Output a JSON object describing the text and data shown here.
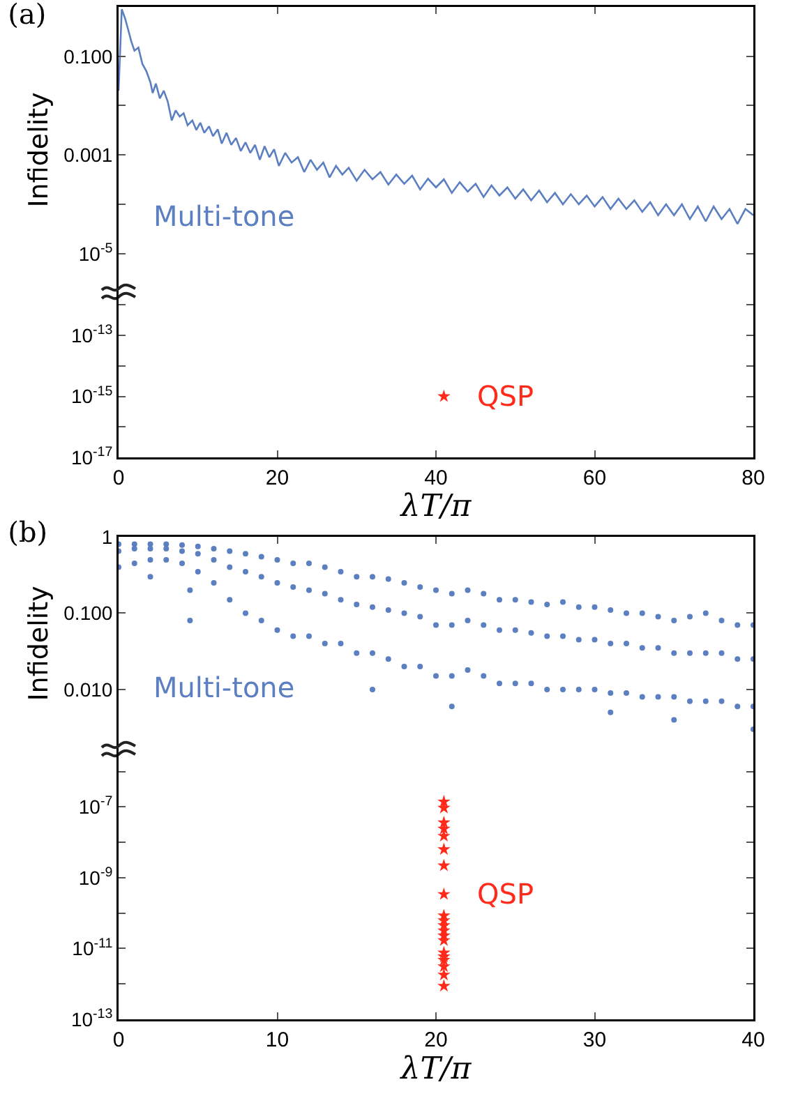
{
  "chart_data": [
    {
      "type": "line",
      "title": "(a)",
      "ylabel": "Infidelity",
      "log": true,
      "tick_labels": "y",
      "xlim": [
        0,
        80
      ],
      "xticks": [
        0,
        20,
        40,
        60,
        80
      ],
      "ylim": [
        1.6e-06,
        1
      ],
      "yticks": [
        {
          "value": 1e-05,
          "label": "10$^{-5}$"
        },
        {
          "value": 0.0001,
          "label": null
        },
        0.001,
        {
          "value": 0.01,
          "label": null
        },
        {
          "value": 0.1,
          "label": "0.100"
        }
      ],
      "series": [
        {
          "name": "Multi-tone",
          "color": "#5b7fc0",
          "x": [
            0,
            0.4,
            0.8,
            1.2,
            1.6,
            2,
            2.5,
            3,
            3.5,
            4,
            4.3,
            4.7,
            5.2,
            5.7,
            6.2,
            6.7,
            7.2,
            7.7,
            8.2,
            8.7,
            9.3,
            9.8,
            10.3,
            10.8,
            11.4,
            11.9,
            12.5,
            13,
            13.6,
            14.2,
            14.8,
            15.4,
            16,
            16.6,
            17.2,
            17.8,
            18.4,
            19,
            19.6,
            20.2,
            21,
            21.8,
            22.6,
            23.4,
            24.2,
            25,
            25.8,
            26.6,
            27.4,
            28.2,
            29,
            30,
            31,
            32,
            33,
            34,
            35,
            36,
            37,
            38,
            39,
            40,
            41,
            42,
            43,
            44,
            45,
            46,
            47,
            48,
            49,
            50,
            51,
            52,
            53,
            54,
            55,
            56,
            57,
            58,
            59,
            60,
            61,
            62,
            63,
            64,
            65,
            66,
            67,
            68,
            69,
            70,
            71,
            72,
            73,
            74,
            75,
            76,
            77,
            78,
            79,
            80
          ],
          "values": [
            0.02,
            0.9,
            0.6,
            0.35,
            0.2,
            0.13,
            0.15,
            0.07,
            0.05,
            0.03,
            0.018,
            0.028,
            0.014,
            0.02,
            0.012,
            0.005,
            0.008,
            0.006,
            0.007,
            0.004,
            0.005,
            0.0032,
            0.0045,
            0.0028,
            0.0038,
            0.0024,
            0.0033,
            0.0017,
            0.0028,
            0.0016,
            0.0022,
            0.0012,
            0.0018,
            0.0011,
            0.0016,
            0.0008,
            0.0015,
            0.0009,
            0.0013,
            0.0006,
            0.0011,
            0.0007,
            0.0009,
            0.00045,
            0.0008,
            0.0005,
            0.0007,
            0.00035,
            0.0006,
            0.0004,
            0.00055,
            0.0003,
            0.0005,
            0.00032,
            0.00045,
            0.00025,
            0.0004,
            0.00026,
            0.00038,
            0.0002,
            0.00033,
            0.00022,
            0.00032,
            0.00017,
            0.00028,
            0.00018,
            0.00026,
            0.00014,
            0.00024,
            0.00015,
            0.00022,
            0.00013,
            0.0002,
            0.00012,
            0.00019,
            0.00011,
            0.00017,
            0.0001,
            0.00016,
            0.0001,
            0.00015,
            9e-05,
            0.00014,
            8e-05,
            0.00013,
            8e-05,
            0.00012,
            7e-05,
            0.00011,
            6e-05,
            0.0001,
            6e-05,
            0.0001,
            5e-05,
            9e-05,
            4.5e-05,
            9e-05,
            5e-05,
            8e-05,
            4e-05,
            8e-05,
            6e-05
          ]
        }
      ]
    },
    {
      "type": "scatter",
      "marker": "star",
      "xlabel": "λT/π",
      "log": true,
      "xlim": [
        0,
        80
      ],
      "xticks": [
        0,
        20,
        40,
        60,
        80
      ],
      "ylim": [
        1e-17,
        2.5e-12
      ],
      "yticks": [
        {
          "value": 1e-17,
          "label": "10$^{-17}$"
        },
        {
          "value": 1e-16,
          "label": null
        },
        {
          "value": 1e-15,
          "label": "10$^{-15}$"
        },
        {
          "value": 1e-14,
          "label": null
        },
        {
          "value": 1e-13,
          "label": "10$^{-13}$"
        },
        {
          "value": 1e-12,
          "label": null
        }
      ],
      "series": [
        {
          "name": "QSP",
          "color": "#ff2a1a",
          "x": [
            41
          ],
          "values": [
            1e-15
          ]
        }
      ]
    },
    {
      "type": "scatter",
      "marker": "circle",
      "title": "(b)",
      "ylabel": "Infidelity",
      "log": true,
      "tick_labels": "y",
      "xlim": [
        0,
        40
      ],
      "xticks": [
        0,
        10,
        20,
        30,
        40
      ],
      "ylim": [
        0.0016,
        1
      ],
      "yticks": [
        {
          "value": 0.01,
          "label": "0.010"
        },
        {
          "value": 0.1,
          "label": "0.100"
        },
        1
      ],
      "series": [
        {
          "name": "Multi-tone",
          "color": "#5b7fc0",
          "x": [
            0,
            0,
            0,
            1,
            1,
            1,
            2,
            2,
            2,
            3,
            3,
            3,
            4,
            4,
            4,
            5,
            5,
            5,
            6,
            6,
            6,
            7,
            7,
            7,
            8,
            8,
            8,
            9,
            9,
            9,
            10,
            10,
            10,
            11,
            11,
            11,
            12,
            12,
            12,
            13,
            13,
            13,
            14,
            14,
            14,
            15,
            15,
            15,
            16,
            16,
            16,
            17,
            17,
            17,
            18,
            18,
            18,
            19,
            19,
            19,
            20,
            20,
            20,
            21,
            21,
            21,
            22,
            22,
            22,
            23,
            23,
            23,
            24,
            24,
            24,
            25,
            25,
            25,
            26,
            26,
            26,
            27,
            27,
            27,
            28,
            28,
            28,
            29,
            29,
            29,
            30,
            30,
            30,
            31,
            31,
            31,
            32,
            32,
            32,
            33,
            33,
            33,
            34,
            34,
            34,
            35,
            35,
            35,
            36,
            36,
            36,
            37,
            37,
            37,
            38,
            38,
            38,
            39,
            39,
            39,
            40,
            40,
            40,
            2,
            4.5,
            4.5,
            16,
            21,
            31,
            35,
            40
          ],
          "values": [
            0.8,
            0.65,
            0.4,
            0.8,
            0.7,
            0.45,
            0.8,
            0.7,
            0.5,
            0.8,
            0.7,
            0.5,
            0.78,
            0.65,
            0.45,
            0.75,
            0.6,
            0.35,
            0.7,
            0.5,
            0.25,
            0.65,
            0.4,
            0.15,
            0.6,
            0.35,
            0.1,
            0.55,
            0.3,
            0.08,
            0.5,
            0.25,
            0.06,
            0.45,
            0.22,
            0.05,
            0.45,
            0.2,
            0.05,
            0.4,
            0.18,
            0.04,
            0.35,
            0.15,
            0.04,
            0.3,
            0.13,
            0.03,
            0.3,
            0.12,
            0.03,
            0.28,
            0.11,
            0.025,
            0.25,
            0.1,
            0.02,
            0.22,
            0.09,
            0.02,
            0.2,
            0.07,
            0.015,
            0.18,
            0.07,
            0.015,
            0.2,
            0.08,
            0.018,
            0.18,
            0.07,
            0.015,
            0.15,
            0.06,
            0.012,
            0.15,
            0.06,
            0.012,
            0.14,
            0.055,
            0.012,
            0.13,
            0.05,
            0.01,
            0.14,
            0.05,
            0.01,
            0.12,
            0.045,
            0.01,
            0.12,
            0.045,
            0.01,
            0.11,
            0.04,
            0.009,
            0.1,
            0.04,
            0.009,
            0.1,
            0.035,
            0.008,
            0.09,
            0.035,
            0.008,
            0.08,
            0.03,
            0.008,
            0.09,
            0.03,
            0.007,
            0.1,
            0.03,
            0.007,
            0.08,
            0.03,
            0.007,
            0.07,
            0.025,
            0.006,
            0.07,
            0.025,
            0.006,
            0.3,
            0.2,
            0.08,
            0.01,
            0.006,
            0.005,
            0.004,
            0.003
          ]
        }
      ]
    },
    {
      "type": "scatter",
      "marker": "star",
      "xlabel": "λT/π",
      "log": true,
      "xlim": [
        0,
        40
      ],
      "xticks": [
        0,
        10,
        20,
        30,
        40
      ],
      "ylim": [
        1e-13,
        4e-06
      ],
      "yticks": [
        {
          "value": 1e-13,
          "label": "10$^{-13}$"
        },
        {
          "value": 1e-12,
          "label": null
        },
        {
          "value": 1e-11,
          "label": "10$^{-11}$"
        },
        {
          "value": 1e-10,
          "label": null
        },
        {
          "value": 1e-09,
          "label": "10$^{-9}$"
        },
        {
          "value": 1e-08,
          "label": null
        },
        {
          "value": 1e-07,
          "label": "10$^{-7}$"
        },
        {
          "value": 1e-06,
          "label": null
        }
      ],
      "series": [
        {
          "name": "QSP",
          "color": "#ff2a1a",
          "x": [
            20.5,
            20.5,
            20.5,
            20.5,
            20.5,
            20.5,
            20.5,
            20.5,
            20.5,
            20.5,
            20.5,
            20.5,
            20.5,
            20.5,
            20.5,
            20.5,
            20.5,
            20.5,
            20.5,
            20.5
          ],
          "values": [
            1.4e-07,
            9.4e-08,
            3.6e-08,
            2.4e-08,
            1.5e-08,
            6.3e-09,
            2.2e-09,
            3.4e-10,
            8.5e-11,
            6.2e-11,
            4.5e-11,
            3.2e-11,
            2.3e-11,
            1.7e-11,
            7.6e-12,
            5.9e-12,
            4.7e-12,
            3.1e-12,
            1.8e-12,
            8.7e-13
          ]
        }
      ]
    }
  ]
}
